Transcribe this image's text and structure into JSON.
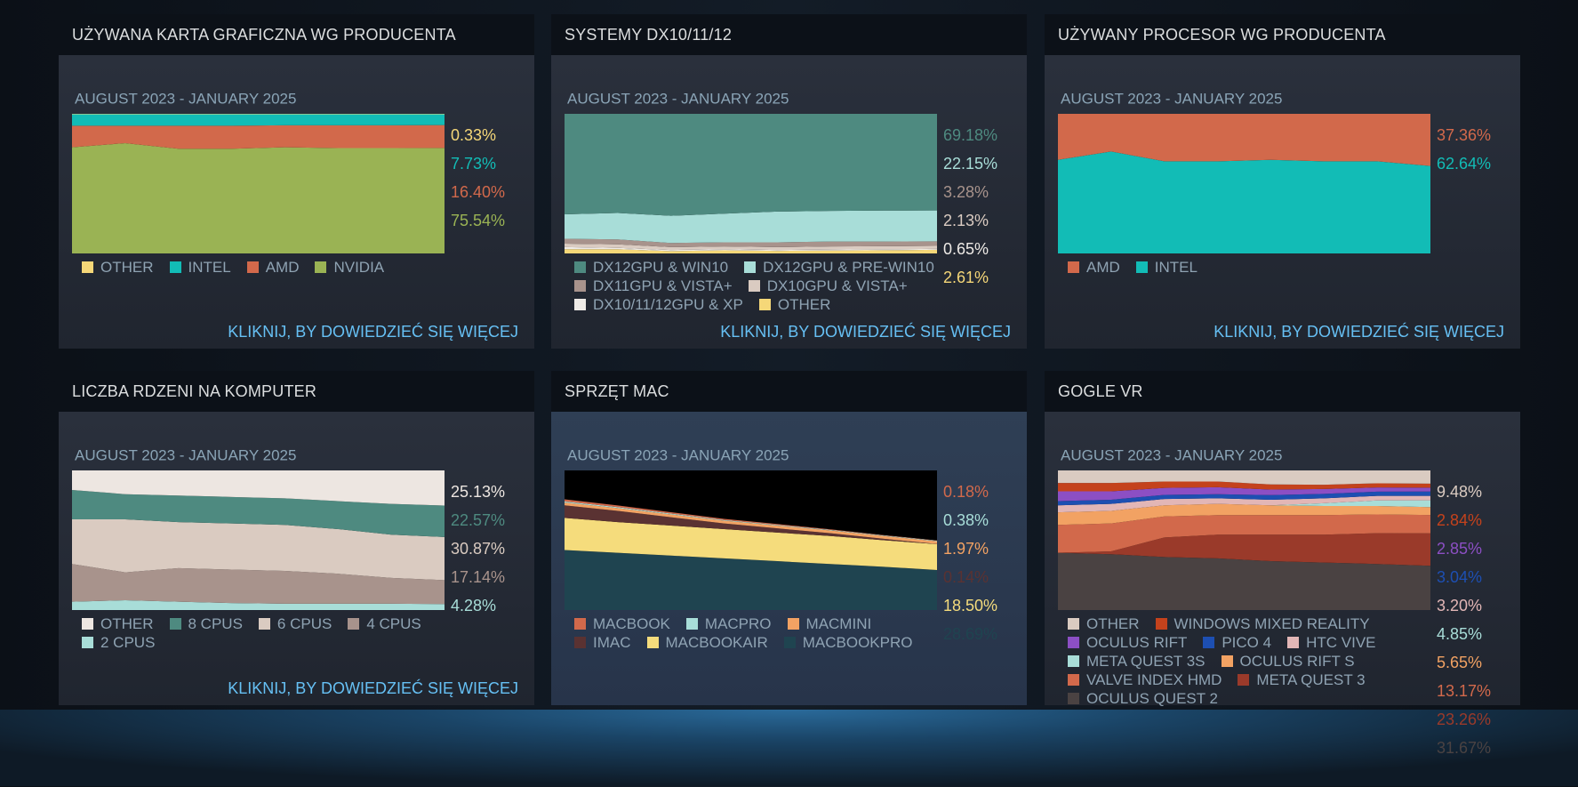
{
  "chart_data": [
    {
      "type": "area",
      "title": "UŻYWANA KARTA GRAFICZNA WG PRODUCENTA",
      "subtitle": "AUGUST 2023 - JANUARY 2025",
      "link": "KLIKNIJ, BY DOWIEDZIEĆ SIĘ WIĘCEJ",
      "ylim": [
        0,
        100
      ],
      "series": [
        {
          "name": "OTHER",
          "color": "#f5d778",
          "values": [
            0.3,
            0.3,
            0.3,
            0.3,
            0.3,
            0.3,
            0.3,
            0.33
          ],
          "value_labels": [
            null,
            null,
            null,
            null,
            null,
            null,
            null,
            "0.33%"
          ]
        },
        {
          "name": "INTEL",
          "color": "#12bcb6",
          "values": [
            8.2,
            8.2,
            8.2,
            8.2,
            7.9,
            7.9,
            7.9,
            7.73
          ],
          "value_labels": [
            null,
            null,
            null,
            null,
            null,
            null,
            null,
            "7.73%"
          ]
        },
        {
          "name": "AMD",
          "color": "#d2694b",
          "values": [
            15.5,
            12.5,
            16.5,
            16.5,
            15.8,
            16.3,
            16.3,
            16.4
          ],
          "value_labels": [
            null,
            null,
            null,
            null,
            null,
            null,
            null,
            "16.40%"
          ]
        },
        {
          "name": "NVIDIA",
          "color": "#9ab354",
          "values": [
            76,
            79,
            75,
            75,
            76,
            75.5,
            75.5,
            75.54
          ],
          "value_labels": [
            null,
            null,
            null,
            null,
            null,
            null,
            null,
            "75.54%"
          ]
        }
      ]
    },
    {
      "type": "area",
      "title": "SYSTEMY DX10/11/12",
      "subtitle": "AUGUST 2023 - JANUARY 2025",
      "link": "KLIKNIJ, BY DOWIEDZIEĆ SIĘ WIĘCEJ",
      "ylim": [
        0,
        100
      ],
      "series": [
        {
          "name": "DX12GPU & WIN10",
          "color": "#4e8a80",
          "values": [
            72,
            71,
            73,
            71.5,
            70,
            69.5,
            69.3,
            69.18
          ],
          "value_labels": [
            null,
            null,
            null,
            null,
            null,
            null,
            null,
            "69.18%"
          ]
        },
        {
          "name": "DX12GPU & PRE-WIN10",
          "color": "#a8ddd8",
          "values": [
            17.5,
            19,
            19.5,
            20.5,
            22,
            22,
            22.2,
            22.15
          ],
          "value_labels": [
            null,
            null,
            null,
            null,
            null,
            null,
            null,
            "22.15%"
          ]
        },
        {
          "name": "DX11GPU & VISTA+",
          "color": "#a8938c",
          "values": [
            3.5,
            3.5,
            3,
            3,
            3.5,
            3.5,
            3.3,
            3.28
          ],
          "value_labels": [
            null,
            null,
            null,
            null,
            null,
            null,
            null,
            "3.28%"
          ]
        },
        {
          "name": "DX10GPU & VISTA+",
          "color": "#dacbc1",
          "values": [
            2.5,
            2.5,
            2,
            2,
            2,
            2.2,
            2.2,
            2.13
          ],
          "value_labels": [
            null,
            null,
            null,
            null,
            null,
            null,
            null,
            "2.13%"
          ]
        },
        {
          "name": "DX10/11/12GPU & XP",
          "color": "#eeeae6",
          "values": [
            1.5,
            1,
            0.8,
            0.8,
            0.7,
            0.7,
            0.7,
            0.65
          ],
          "value_labels": [
            null,
            null,
            null,
            null,
            null,
            null,
            null,
            "0.65%"
          ]
        },
        {
          "name": "OTHER",
          "color": "#f5d778",
          "values": [
            3,
            3,
            1.7,
            2.2,
            1.8,
            2.1,
            2.3,
            2.61
          ],
          "value_labels": [
            null,
            null,
            null,
            null,
            null,
            null,
            null,
            "2.61%"
          ]
        }
      ]
    },
    {
      "type": "area",
      "title": "UŻYWANY PROCESOR WG PRODUCENTA",
      "subtitle": "AUGUST 2023 - JANUARY 2025",
      "link": "KLIKNIJ, BY DOWIEDZIEĆ SIĘ WIĘCEJ",
      "ylim": [
        0,
        100
      ],
      "series": [
        {
          "name": "AMD",
          "color": "#d2694b",
          "values": [
            33,
            27,
            34,
            34,
            33,
            34,
            34,
            37.36
          ],
          "value_labels": [
            null,
            null,
            null,
            null,
            null,
            null,
            null,
            "37.36%"
          ]
        },
        {
          "name": "INTEL",
          "color": "#12bcb6",
          "values": [
            67,
            73,
            66,
            66,
            67,
            66,
            66,
            62.64
          ],
          "value_labels": [
            null,
            null,
            null,
            null,
            null,
            null,
            null,
            "62.64%"
          ]
        }
      ]
    },
    {
      "type": "area",
      "title": "LICZBA RDZENI NA KOMPUTER",
      "subtitle": "AUGUST 2023 - JANUARY 2025",
      "link": "KLIKNIJ, BY DOWIEDZIEĆ SIĘ WIĘCEJ",
      "ylim": [
        0,
        100
      ],
      "series": [
        {
          "name": "OTHER",
          "color": "#ede6e1",
          "values": [
            14,
            17,
            18,
            19,
            20,
            22,
            24,
            25.13
          ],
          "value_labels": [
            null,
            null,
            null,
            null,
            null,
            null,
            null,
            "25.13%"
          ]
        },
        {
          "name": "8 CPUS",
          "color": "#4e8a80",
          "values": [
            21,
            18,
            19,
            19,
            19,
            20,
            22,
            22.57
          ],
          "value_labels": [
            null,
            null,
            null,
            null,
            null,
            null,
            null,
            "22.57%"
          ]
        },
        {
          "name": "6 CPUS",
          "color": "#dacbc1",
          "values": [
            32,
            38,
            33,
            33,
            33,
            32,
            31,
            30.87
          ],
          "value_labels": [
            null,
            null,
            null,
            null,
            null,
            null,
            null,
            "30.87%"
          ]
        },
        {
          "name": "4 CPUS",
          "color": "#a8938c",
          "values": [
            27,
            20,
            24,
            24,
            23.5,
            21.5,
            18.5,
            17.14
          ],
          "value_labels": [
            null,
            null,
            null,
            null,
            null,
            null,
            null,
            "17.14%"
          ]
        },
        {
          "name": "2 CPUS",
          "color": "#a8ddd8",
          "values": [
            6,
            7,
            6,
            5,
            4.5,
            4.5,
            4.5,
            4.28
          ],
          "value_labels": [
            null,
            null,
            null,
            null,
            null,
            null,
            null,
            "4.28%"
          ]
        }
      ]
    },
    {
      "type": "area",
      "title": "SPRZĘT MAC",
      "subtitle": "AUGUST 2023 - JANUARY 2025",
      "ylim": [
        0,
        100
      ],
      "series": [
        {
          "name": "MACBOOK",
          "color": "#d2694b",
          "values": [
            1.5,
            1.2,
            1,
            0.8,
            0.6,
            0.4,
            0.3,
            0.18
          ],
          "value_labels": [
            null,
            null,
            null,
            null,
            null,
            null,
            null,
            "0.18%"
          ]
        },
        {
          "name": "MACPRO",
          "color": "#a8ddd8",
          "values": [
            0.8,
            0.7,
            0.6,
            0.5,
            0.5,
            0.4,
            0.4,
            0.38
          ],
          "value_labels": [
            null,
            null,
            null,
            null,
            null,
            null,
            null,
            "0.38%"
          ]
        },
        {
          "name": "MACMINI",
          "color": "#f2a263",
          "values": [
            2,
            2,
            2,
            2,
            2,
            2,
            2,
            1.97
          ],
          "value_labels": [
            null,
            null,
            null,
            null,
            null,
            null,
            null,
            "1.97%"
          ]
        },
        {
          "name": "IMAC",
          "color": "#5a3232",
          "values": [
            9,
            8,
            6,
            4,
            3,
            2,
            1,
            0.14
          ],
          "value_labels": [
            null,
            null,
            null,
            null,
            null,
            null,
            null,
            "0.14%"
          ]
        },
        {
          "name": "MACBOOKAIR",
          "color": "#f5dc7c",
          "values": [
            23,
            22,
            21.5,
            21,
            20.5,
            20,
            19,
            18.5
          ],
          "value_labels": [
            null,
            null,
            null,
            null,
            null,
            null,
            null,
            "18.50%"
          ]
        },
        {
          "name": "MACBOOKPRO",
          "color": "#1f4450",
          "values": [
            43,
            41,
            39,
            37,
            35,
            33,
            31,
            28.69
          ],
          "value_labels": [
            null,
            null,
            null,
            null,
            null,
            null,
            null,
            "28.69%"
          ]
        }
      ]
    },
    {
      "type": "area",
      "title": "GOGLE VR",
      "subtitle": "AUGUST 2023 - JANUARY 2025",
      "ylim": [
        0,
        100
      ],
      "series": [
        {
          "name": "OTHER",
          "color": "#dacbc1",
          "values": [
            9,
            9,
            8,
            8,
            10,
            10.3,
            9.2,
            9.48
          ],
          "value_labels": [
            null,
            null,
            null,
            null,
            null,
            null,
            null,
            "9.48%"
          ]
        },
        {
          "name": "WINDOWS MIXED REALITY",
          "color": "#c4421c",
          "values": [
            6,
            6,
            4.5,
            4,
            3.7,
            3,
            3,
            2.84
          ],
          "value_labels": [
            null,
            null,
            null,
            null,
            null,
            null,
            null,
            "2.84%"
          ]
        },
        {
          "name": "OCULUS RIFT",
          "color": "#8c4fc4",
          "values": [
            7,
            6,
            5,
            5,
            4,
            3.5,
            3,
            2.85
          ],
          "value_labels": [
            null,
            null,
            null,
            null,
            null,
            null,
            null,
            "2.85%"
          ]
        },
        {
          "name": "PICO 4",
          "color": "#1d4fb2",
          "values": [
            3,
            3,
            3,
            3,
            3.3,
            3.2,
            3,
            3.04
          ],
          "value_labels": [
            null,
            null,
            null,
            null,
            null,
            null,
            null,
            "3.04%"
          ]
        },
        {
          "name": "HTC VIVE",
          "color": "#e2b6b6",
          "values": [
            5,
            5,
            4.5,
            4,
            4,
            3.5,
            3.3,
            3.2
          ],
          "value_labels": [
            null,
            null,
            null,
            null,
            null,
            null,
            null,
            "3.20%"
          ]
        },
        {
          "name": "META QUEST 3S",
          "color": "#a8ddd8",
          "values": [
            0,
            0,
            0,
            0,
            0,
            2,
            4,
            4.85
          ],
          "value_labels": [
            null,
            null,
            null,
            null,
            null,
            null,
            null,
            "4.85%"
          ]
        },
        {
          "name": "OCULUS RIFT S",
          "color": "#f2a263",
          "values": [
            9,
            9,
            8,
            8,
            7,
            6.5,
            6,
            5.65
          ],
          "value_labels": [
            null,
            null,
            null,
            null,
            null,
            null,
            null,
            "5.65%"
          ]
        },
        {
          "name": "VALVE INDEX HMD",
          "color": "#d2694b",
          "values": [
            20,
            20,
            15,
            14,
            14,
            14,
            13.5,
            13.17
          ],
          "value_labels": [
            null,
            null,
            null,
            null,
            null,
            null,
            null,
            "13.17%"
          ]
        },
        {
          "name": "META QUEST 3",
          "color": "#9a3a2a",
          "values": [
            0,
            2,
            14,
            17,
            19,
            20,
            22,
            23.26
          ],
          "value_labels": [
            null,
            null,
            null,
            null,
            null,
            null,
            null,
            "23.26%"
          ]
        },
        {
          "name": "OCULUS QUEST 2",
          "color": "#4a4242",
          "values": [
            41,
            40,
            38,
            37,
            35,
            34,
            33,
            31.67
          ],
          "value_labels": [
            null,
            null,
            null,
            null,
            null,
            null,
            null,
            "31.67%"
          ]
        }
      ]
    }
  ]
}
